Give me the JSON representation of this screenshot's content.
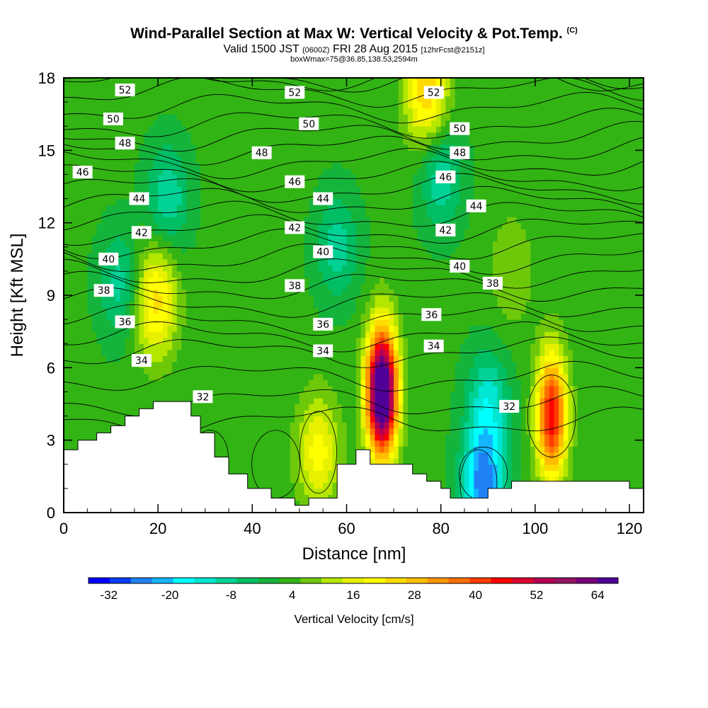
{
  "header": {
    "title": "Wind-Parallel Section at Max W: Vertical Velocity & Pot.Temp.",
    "title_mark": "(C)",
    "valid_prefix": "Valid 1500 JST",
    "valid_utc": "(0600Z)",
    "valid_date": "FRI 28 Aug 2015",
    "forecast": "[12hrFcst@2151z]",
    "box_info": "boxWmax=75@36.85,138.53,2594m"
  },
  "colors": {
    "palette": [
      "#0000ff",
      "#0a3cf8",
      "#1e82f5",
      "#14b4ff",
      "#00ffff",
      "#00e6d2",
      "#00d296",
      "#00be64",
      "#14b43c",
      "#32b414",
      "#6ec80a",
      "#b4e600",
      "#e6f000",
      "#ffff00",
      "#ffdc00",
      "#ffbe00",
      "#ff9600",
      "#ff6e00",
      "#ff3c00",
      "#ff0000",
      "#dc0032",
      "#b40050",
      "#961464",
      "#780078",
      "#500096"
    ],
    "terrain": "#ffffff",
    "contour": "#000000"
  },
  "chart_data": {
    "type": "heatmap",
    "title": "Wind-Parallel Section at Max W: Vertical Velocity & Pot.Temp.",
    "xlabel": "Distance [nm]",
    "ylabel": "Height [Kft MSL]",
    "xlim": [
      0,
      123
    ],
    "ylim": [
      0,
      18
    ],
    "x_ticks": [
      0,
      20,
      40,
      60,
      80,
      100,
      120
    ],
    "y_ticks": [
      0,
      3,
      6,
      9,
      12,
      15,
      18
    ],
    "colorbar": {
      "title": "Vertical Velocity [cm/s]",
      "min": -36,
      "max": 68,
      "step": 4,
      "tick_labels": [
        "-32",
        "-20",
        "-8",
        "4",
        "16",
        "28",
        "40",
        "52",
        "64"
      ]
    },
    "terrain_profile": {
      "x": [
        0,
        3,
        3,
        7,
        7,
        10,
        10,
        13,
        13,
        16,
        16,
        19,
        19,
        23,
        23,
        27,
        27,
        29,
        29,
        32,
        32,
        35,
        35,
        39,
        39,
        44,
        44,
        49,
        49,
        52,
        52,
        58,
        58,
        62,
        62,
        65,
        65,
        74,
        74,
        77,
        77,
        80,
        80,
        82,
        82,
        90,
        90,
        95,
        95,
        102,
        102,
        110,
        110,
        120,
        120,
        123
      ],
      "y": [
        2.6,
        2.6,
        3.0,
        3.0,
        3.3,
        3.3,
        3.6,
        3.6,
        4.0,
        4.0,
        4.3,
        4.3,
        4.6,
        4.6,
        4.6,
        4.6,
        4.0,
        4.0,
        3.3,
        3.3,
        2.3,
        2.3,
        1.6,
        1.6,
        1.0,
        1.0,
        0.6,
        0.6,
        0.3,
        0.3,
        0.6,
        0.6,
        2.0,
        2.0,
        2.6,
        2.6,
        2.0,
        2.0,
        1.6,
        1.6,
        1.3,
        1.3,
        1.0,
        1.0,
        0.6,
        0.6,
        1.0,
        1.0,
        1.3,
        1.3,
        1.3,
        1.3,
        1.3,
        1.3,
        1.0,
        1.0
      ]
    },
    "updraft_cores": [
      {
        "x": 67.5,
        "y": 5.0,
        "peak": 75
      },
      {
        "x": 19.5,
        "y": 8.8,
        "peak": 22
      },
      {
        "x": 103.5,
        "y": 4.0,
        "peak": 44
      },
      {
        "x": 54,
        "y": 2.5,
        "peak": 18
      },
      {
        "x": 77,
        "y": 17.5,
        "peak": 24
      },
      {
        "x": 95,
        "y": 10,
        "peak": 8
      }
    ],
    "downdraft_cores": [
      {
        "x": 89,
        "y": 1.2,
        "peak": -26
      },
      {
        "x": 22,
        "y": 13,
        "peak": -12
      },
      {
        "x": 12,
        "y": 9.5,
        "peak": -10
      },
      {
        "x": 58,
        "y": 11,
        "peak": -10
      },
      {
        "x": 80,
        "y": 14,
        "peak": -12
      },
      {
        "x": 90,
        "y": 4.5,
        "peak": -14
      }
    ],
    "isentrope_labels": [
      {
        "value": "52",
        "x": 13,
        "y": 17.5
      },
      {
        "value": "52",
        "x": 49,
        "y": 17.4
      },
      {
        "value": "52",
        "x": 78.5,
        "y": 17.4
      },
      {
        "value": "50",
        "x": 10.5,
        "y": 16.3
      },
      {
        "value": "50",
        "x": 52,
        "y": 16.1
      },
      {
        "value": "50",
        "x": 84,
        "y": 15.9
      },
      {
        "value": "48",
        "x": 13,
        "y": 15.3
      },
      {
        "value": "48",
        "x": 42,
        "y": 14.9
      },
      {
        "value": "48",
        "x": 84,
        "y": 14.9
      },
      {
        "value": "46",
        "x": 4,
        "y": 14.1
      },
      {
        "value": "46",
        "x": 49,
        "y": 13.7
      },
      {
        "value": "46",
        "x": 81,
        "y": 13.9
      },
      {
        "value": "44",
        "x": 16,
        "y": 13.0
      },
      {
        "value": "44",
        "x": 55,
        "y": 13.0
      },
      {
        "value": "44",
        "x": 87.5,
        "y": 12.7
      },
      {
        "value": "42",
        "x": 16.5,
        "y": 11.6
      },
      {
        "value": "42",
        "x": 49,
        "y": 11.8
      },
      {
        "value": "42",
        "x": 81,
        "y": 11.7
      },
      {
        "value": "40",
        "x": 9.5,
        "y": 10.5
      },
      {
        "value": "40",
        "x": 55,
        "y": 10.8
      },
      {
        "value": "40",
        "x": 84,
        "y": 10.2
      },
      {
        "value": "38",
        "x": 8.5,
        "y": 9.2
      },
      {
        "value": "38",
        "x": 49,
        "y": 9.4
      },
      {
        "value": "38",
        "x": 91,
        "y": 9.5
      },
      {
        "value": "36",
        "x": 13,
        "y": 7.9
      },
      {
        "value": "36",
        "x": 55,
        "y": 7.8
      },
      {
        "value": "36",
        "x": 78,
        "y": 8.2
      },
      {
        "value": "34",
        "x": 16.5,
        "y": 6.3
      },
      {
        "value": "34",
        "x": 55,
        "y": 6.7
      },
      {
        "value": "34",
        "x": 78.5,
        "y": 6.9
      },
      {
        "value": "32",
        "x": 29.5,
        "y": 4.8
      },
      {
        "value": "32",
        "x": 94.5,
        "y": 4.4
      }
    ]
  }
}
